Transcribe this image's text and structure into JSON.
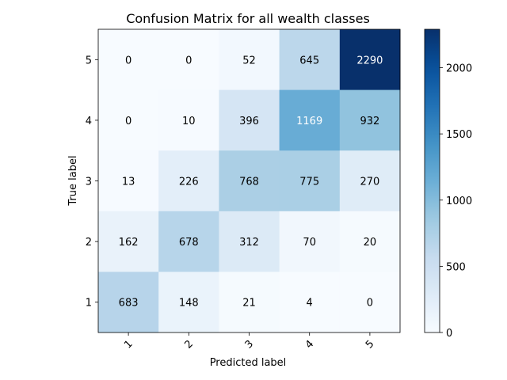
{
  "chart_data": {
    "type": "heatmap",
    "title": "Confusion Matrix for all wealth classes",
    "xlabel": "Predicted label",
    "ylabel": "True label",
    "x_categories": [
      "1",
      "2",
      "3",
      "4",
      "5"
    ],
    "y_categories_top_to_bottom": [
      "5",
      "4",
      "3",
      "2",
      "1"
    ],
    "matrix_top_to_bottom": [
      [
        0,
        0,
        52,
        645,
        2290
      ],
      [
        0,
        10,
        396,
        1169,
        932
      ],
      [
        13,
        226,
        768,
        775,
        270
      ],
      [
        162,
        678,
        312,
        70,
        20
      ],
      [
        683,
        148,
        21,
        4,
        0
      ]
    ],
    "colormap": "Blues",
    "color_range": [
      0,
      2290
    ],
    "colorbar_ticks": [
      0,
      500,
      1000,
      1500,
      2000
    ]
  }
}
